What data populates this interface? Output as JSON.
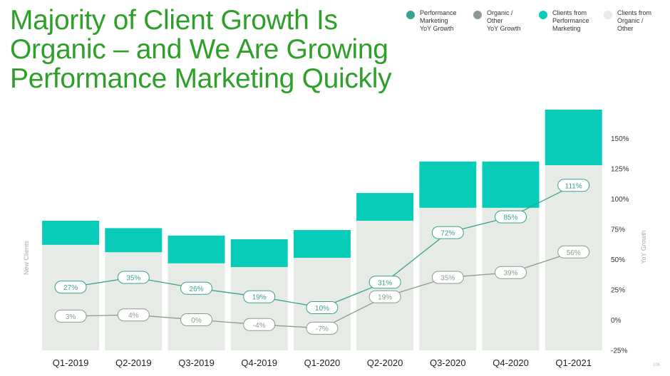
{
  "title": "Majority of Client Growth Is Organic – and We Are Growing Performance Marketing Quickly",
  "page_number": "106",
  "colors": {
    "title": "#2ea02a",
    "performance_yoy": "#3aa290",
    "organic_yoy": "#8e9a8f",
    "clients_performance": "#09ccb8",
    "clients_organic": "#e7ebe6"
  },
  "legend": [
    {
      "label": "Performance\nMarketing\nYoY Growth",
      "color": "#3aa290"
    },
    {
      "label": "Organic /\nOther\nYoY Growth",
      "color": "#8e9a8f"
    },
    {
      "label": "Clients from\nPerformance\nMarketing",
      "color": "#09ccb8"
    },
    {
      "label": "Clients from\nOrganic /\nOther",
      "color": "#e7ebe6"
    }
  ],
  "chart_data": {
    "type": "bar",
    "categories": [
      "Q1-2019",
      "Q2-2019",
      "Q3-2019",
      "Q4-2019",
      "Q1-2020",
      "Q2-2020",
      "Q3-2020",
      "Q4-2020",
      "Q1-2021"
    ],
    "series": [
      {
        "name": "Clients from Organic / Other",
        "type": "bar",
        "stack": "clients",
        "color": "#e7ebe6",
        "values": [
          57,
          53,
          47,
          45,
          50,
          70,
          77,
          77,
          100
        ]
      },
      {
        "name": "Clients from Performance Marketing",
        "type": "bar",
        "stack": "clients",
        "color": "#09ccb8",
        "values": [
          13,
          13,
          15,
          15,
          15,
          15,
          25,
          25,
          30
        ]
      },
      {
        "name": "Performance Marketing YoY Growth",
        "type": "line",
        "axis": "right",
        "color": "#3aa290",
        "values": [
          27,
          35,
          26,
          19,
          10,
          31,
          72,
          85,
          111
        ],
        "labels": [
          "27%",
          "35%",
          "26%",
          "19%",
          "10%",
          "31%",
          "72%",
          "85%",
          "111%"
        ]
      },
      {
        "name": "Organic / Other YoY Growth",
        "type": "line",
        "axis": "right",
        "color": "#8e9a8f",
        "values": [
          3,
          4,
          0,
          -4,
          -7,
          19,
          35,
          39,
          56
        ],
        "labels": [
          "3%",
          "4%",
          "0%",
          "-4%",
          "-7%",
          "19%",
          "35%",
          "39%",
          "56%"
        ]
      }
    ],
    "ylabel": "New Clients",
    "y2label": "YoY Growth",
    "y2ticks": [
      "150%",
      "125%",
      "100%",
      "75%",
      "50%",
      "25%",
      "0%",
      "-25%"
    ],
    "y2tick_values": [
      150,
      125,
      100,
      75,
      50,
      25,
      0,
      -25
    ],
    "y2lim": [
      -25,
      150
    ],
    "grid": false
  }
}
